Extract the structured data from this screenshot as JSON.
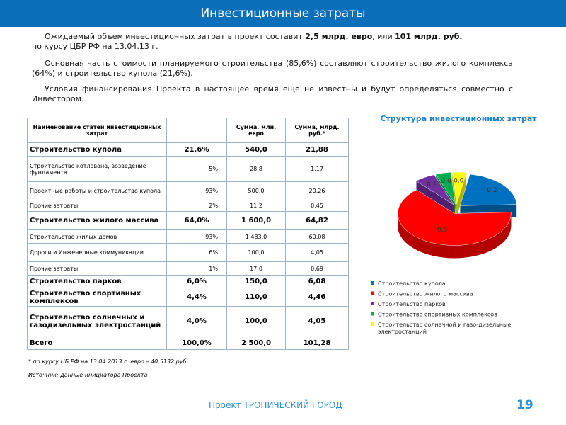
{
  "header": {
    "title": "Инвестиционные затраты"
  },
  "paragraphs": [
    [
      "Ожидаемый объем инвестиционных затрат в проект составит ",
      "2,5 млрд. евро",
      ", или ",
      "101 млрд. руб.",
      "\nпо курсу ЦБР РФ на 13.04.13 г."
    ],
    [
      "Основная  часть стоимости планируемого строительства (85,6%) составляют строительство жилого комплекса (64%) и строительство купола (21,6%)."
    ],
    [
      "Условия финансирования Проекта в настоящее время еще не известны и будут определяться совместно с Инвестором."
    ]
  ],
  "table": {
    "header": [
      "Наименование статей инвестиционных затрат",
      "Сумма, млн. евро",
      "Сумма, млрд. руб.*"
    ],
    "sections": [
      {
        "row": [
          "Строительство купола",
          "21,6%",
          "540,0",
          "21,88"
        ],
        "items": [
          [
            "Строительство котлована, возведение фундамента",
            "5%",
            "28,8",
            "1,17"
          ],
          [
            "Проектные работы и строительство купола",
            "93%",
            "500,0",
            "20,26"
          ],
          [
            "Прочие затраты",
            "2%",
            "11,2",
            "0,45"
          ]
        ]
      },
      {
        "row": [
          "Строительство жилого массива",
          "64,0%",
          "1 600,0",
          "64,82"
        ],
        "items": [
          [
            "Строительство жилых домов",
            "93%",
            "1 483,0",
            "60,08"
          ],
          [
            "Дороги и Инженерные коммуникации",
            "6%",
            "100,0",
            "4,05"
          ],
          [
            "Прочие затраты",
            "1%",
            "17,0",
            "0,69"
          ]
        ]
      },
      {
        "row": [
          "Строительство парков",
          "6,0%",
          "150,0",
          "6,08"
        ],
        "items": []
      },
      {
        "row": [
          "Строительство спортивных комплексов",
          "4,4%",
          "110,0",
          "4,46"
        ],
        "items": []
      },
      {
        "row": [
          "Строительство солнечных и газодизельных электростанций",
          "4,0%",
          "100,0",
          "4,05"
        ],
        "items": []
      }
    ],
    "total": [
      "Всего",
      "100,0%",
      "2 500,0",
      "101,28"
    ]
  },
  "notes": [
    "* по курсу ЦБ РФ на 13.04.2013 г. евро – 40,5132 руб.",
    "Источник: данные инициатора Проекта"
  ],
  "chart_data": {
    "type": "pie",
    "title": "Структура инвестиционных затрат",
    "categories": [
      "Строительство купола",
      "Строительство жилого массива",
      "Строительство парков",
      "Строительство спортивных комплексов",
      "Строительство солнечной и газо-дизельные электростанций"
    ],
    "values": [
      0.216,
      0.64,
      0.06,
      0.044,
      0.04
    ],
    "value_labels": [
      "0.2",
      "0.6",
      "0.1",
      "0.0",
      "0.0"
    ],
    "colors": [
      "#0070c0",
      "#ff0000",
      "#7030a0",
      "#00b050",
      "#ffff00"
    ]
  },
  "footer": {
    "project": "Проект ТРОПИЧЕСКИЙ ГОРОД",
    "page": "19"
  }
}
